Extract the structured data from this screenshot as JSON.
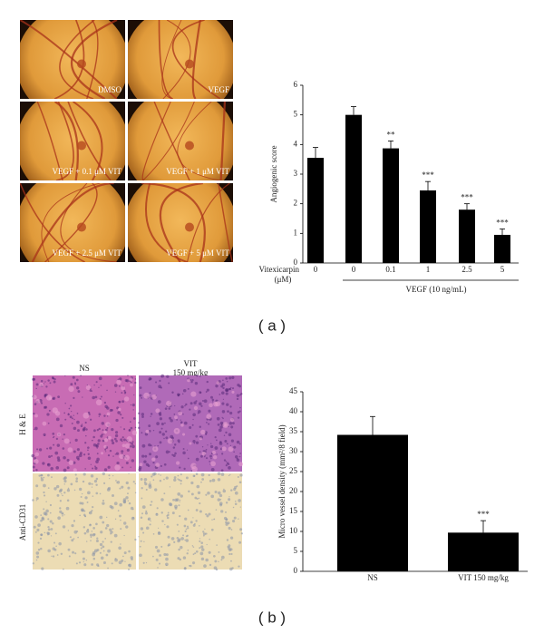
{
  "panels": [
    {
      "label": "( a )",
      "images": [
        "DMSO",
        "VEGF",
        "VEGF + 0.1 μM VIT",
        "VEGF + 1 μM VIT",
        "VEGF + 2.5 μM VIT",
        "VEGF + 5 μM VIT"
      ]
    },
    {
      "label": "( b )",
      "columns": [
        [
          "NS"
        ],
        [
          "VIT",
          "150 mg/kg"
        ]
      ],
      "rows": [
        "H & E",
        "Anti-CD31"
      ]
    }
  ],
  "chart_data": [
    {
      "type": "bar",
      "ylabel": "Angiogenic score",
      "xlabel": [
        "Vitexicarpin",
        "(μM)"
      ],
      "categories": [
        "0",
        "0",
        "0.1",
        "1",
        "2.5",
        "5"
      ],
      "group_label": "VEGF (10 ng/mL)",
      "values": [
        3.55,
        5.0,
        3.87,
        2.45,
        1.8,
        0.95
      ],
      "errors": [
        0.35,
        0.28,
        0.25,
        0.3,
        0.2,
        0.2
      ],
      "annotations": [
        null,
        null,
        "**",
        "***",
        "***",
        "***"
      ],
      "color": "#000000",
      "ylim": [
        0,
        6
      ],
      "yticks": [
        0,
        1,
        2,
        3,
        4,
        5,
        6
      ]
    },
    {
      "type": "bar",
      "ylabel": "Micro vessel density (mm²/8 field)",
      "categories": [
        "NS",
        "VIT 150 mg/kg"
      ],
      "values": [
        34.2,
        9.7
      ],
      "errors": [
        4.6,
        3.0
      ],
      "annotations": [
        null,
        "***"
      ],
      "color": "#000000",
      "ylim": [
        0,
        45
      ],
      "yticks": [
        0,
        5,
        10,
        15,
        20,
        25,
        30,
        35,
        40,
        45
      ]
    }
  ]
}
